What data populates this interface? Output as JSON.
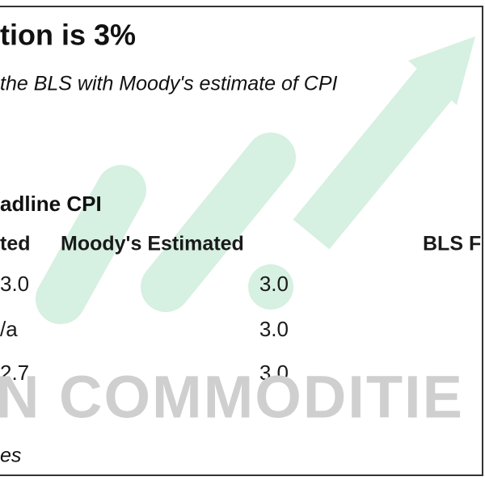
{
  "header": {
    "title": "tion is 3%",
    "subtitle": "the BLS with Moody's estimate of CPI"
  },
  "section": {
    "label": "adline CPI"
  },
  "table": {
    "columns": [
      "ted",
      "Moody's Estimated",
      "BLS F"
    ],
    "rows": [
      [
        "3.0",
        "3.0"
      ],
      [
        "/a",
        "3.0"
      ],
      [
        "2.7",
        "3.0"
      ]
    ]
  },
  "watermark": "N COMMODITIE",
  "footer": "es"
}
